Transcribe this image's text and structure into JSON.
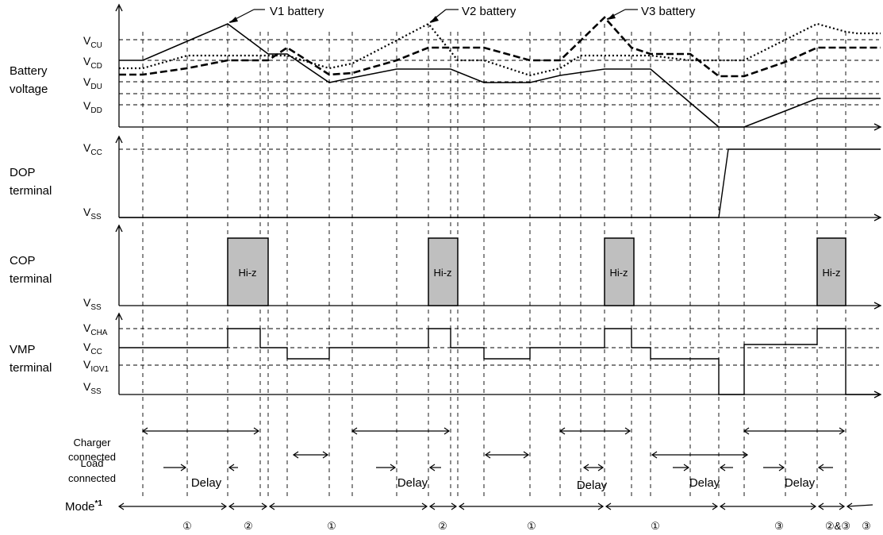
{
  "battery_labels": {
    "v1": "V1 battery",
    "v2": "V2 battery",
    "v3": "V3 battery"
  },
  "rows": {
    "battery": {
      "line1": "Battery",
      "line2": "voltage"
    },
    "dop": {
      "line1": "DOP",
      "line2": "terminal"
    },
    "cop": {
      "line1": "COP",
      "line2": "terminal"
    },
    "vmp": {
      "line1": "VMP",
      "line2": "terminal"
    }
  },
  "levels": {
    "vcu": {
      "main": "V",
      "sub": "CU"
    },
    "vcd": {
      "main": "V",
      "sub": "CD"
    },
    "vdu": {
      "main": "V",
      "sub": "DU"
    },
    "vdd": {
      "main": "V",
      "sub": "DD"
    },
    "vcc_dop": {
      "main": "V",
      "sub": "CC"
    },
    "vss_dop": {
      "main": "V",
      "sub": "SS"
    },
    "vss_cop": {
      "main": "V",
      "sub": "SS"
    },
    "vcha": {
      "main": "V",
      "sub": "CHA"
    },
    "vcc_vmp": {
      "main": "V",
      "sub": "CC"
    },
    "viov1": {
      "main": "V",
      "sub": "IOV1"
    },
    "vss_vmp": {
      "main": "V",
      "sub": "SS"
    }
  },
  "hiz_label": "Hi-z",
  "charger": {
    "line1": "Charger",
    "line2": "connected"
  },
  "load": {
    "line1": "Load",
    "line2": "connected"
  },
  "delay_label": "Delay",
  "mode": {
    "label": "Mode",
    "sup": "*1"
  },
  "mode_values": [
    "①",
    "②",
    "①",
    "②",
    "①",
    "①",
    "③",
    "②&③",
    "③"
  ]
}
